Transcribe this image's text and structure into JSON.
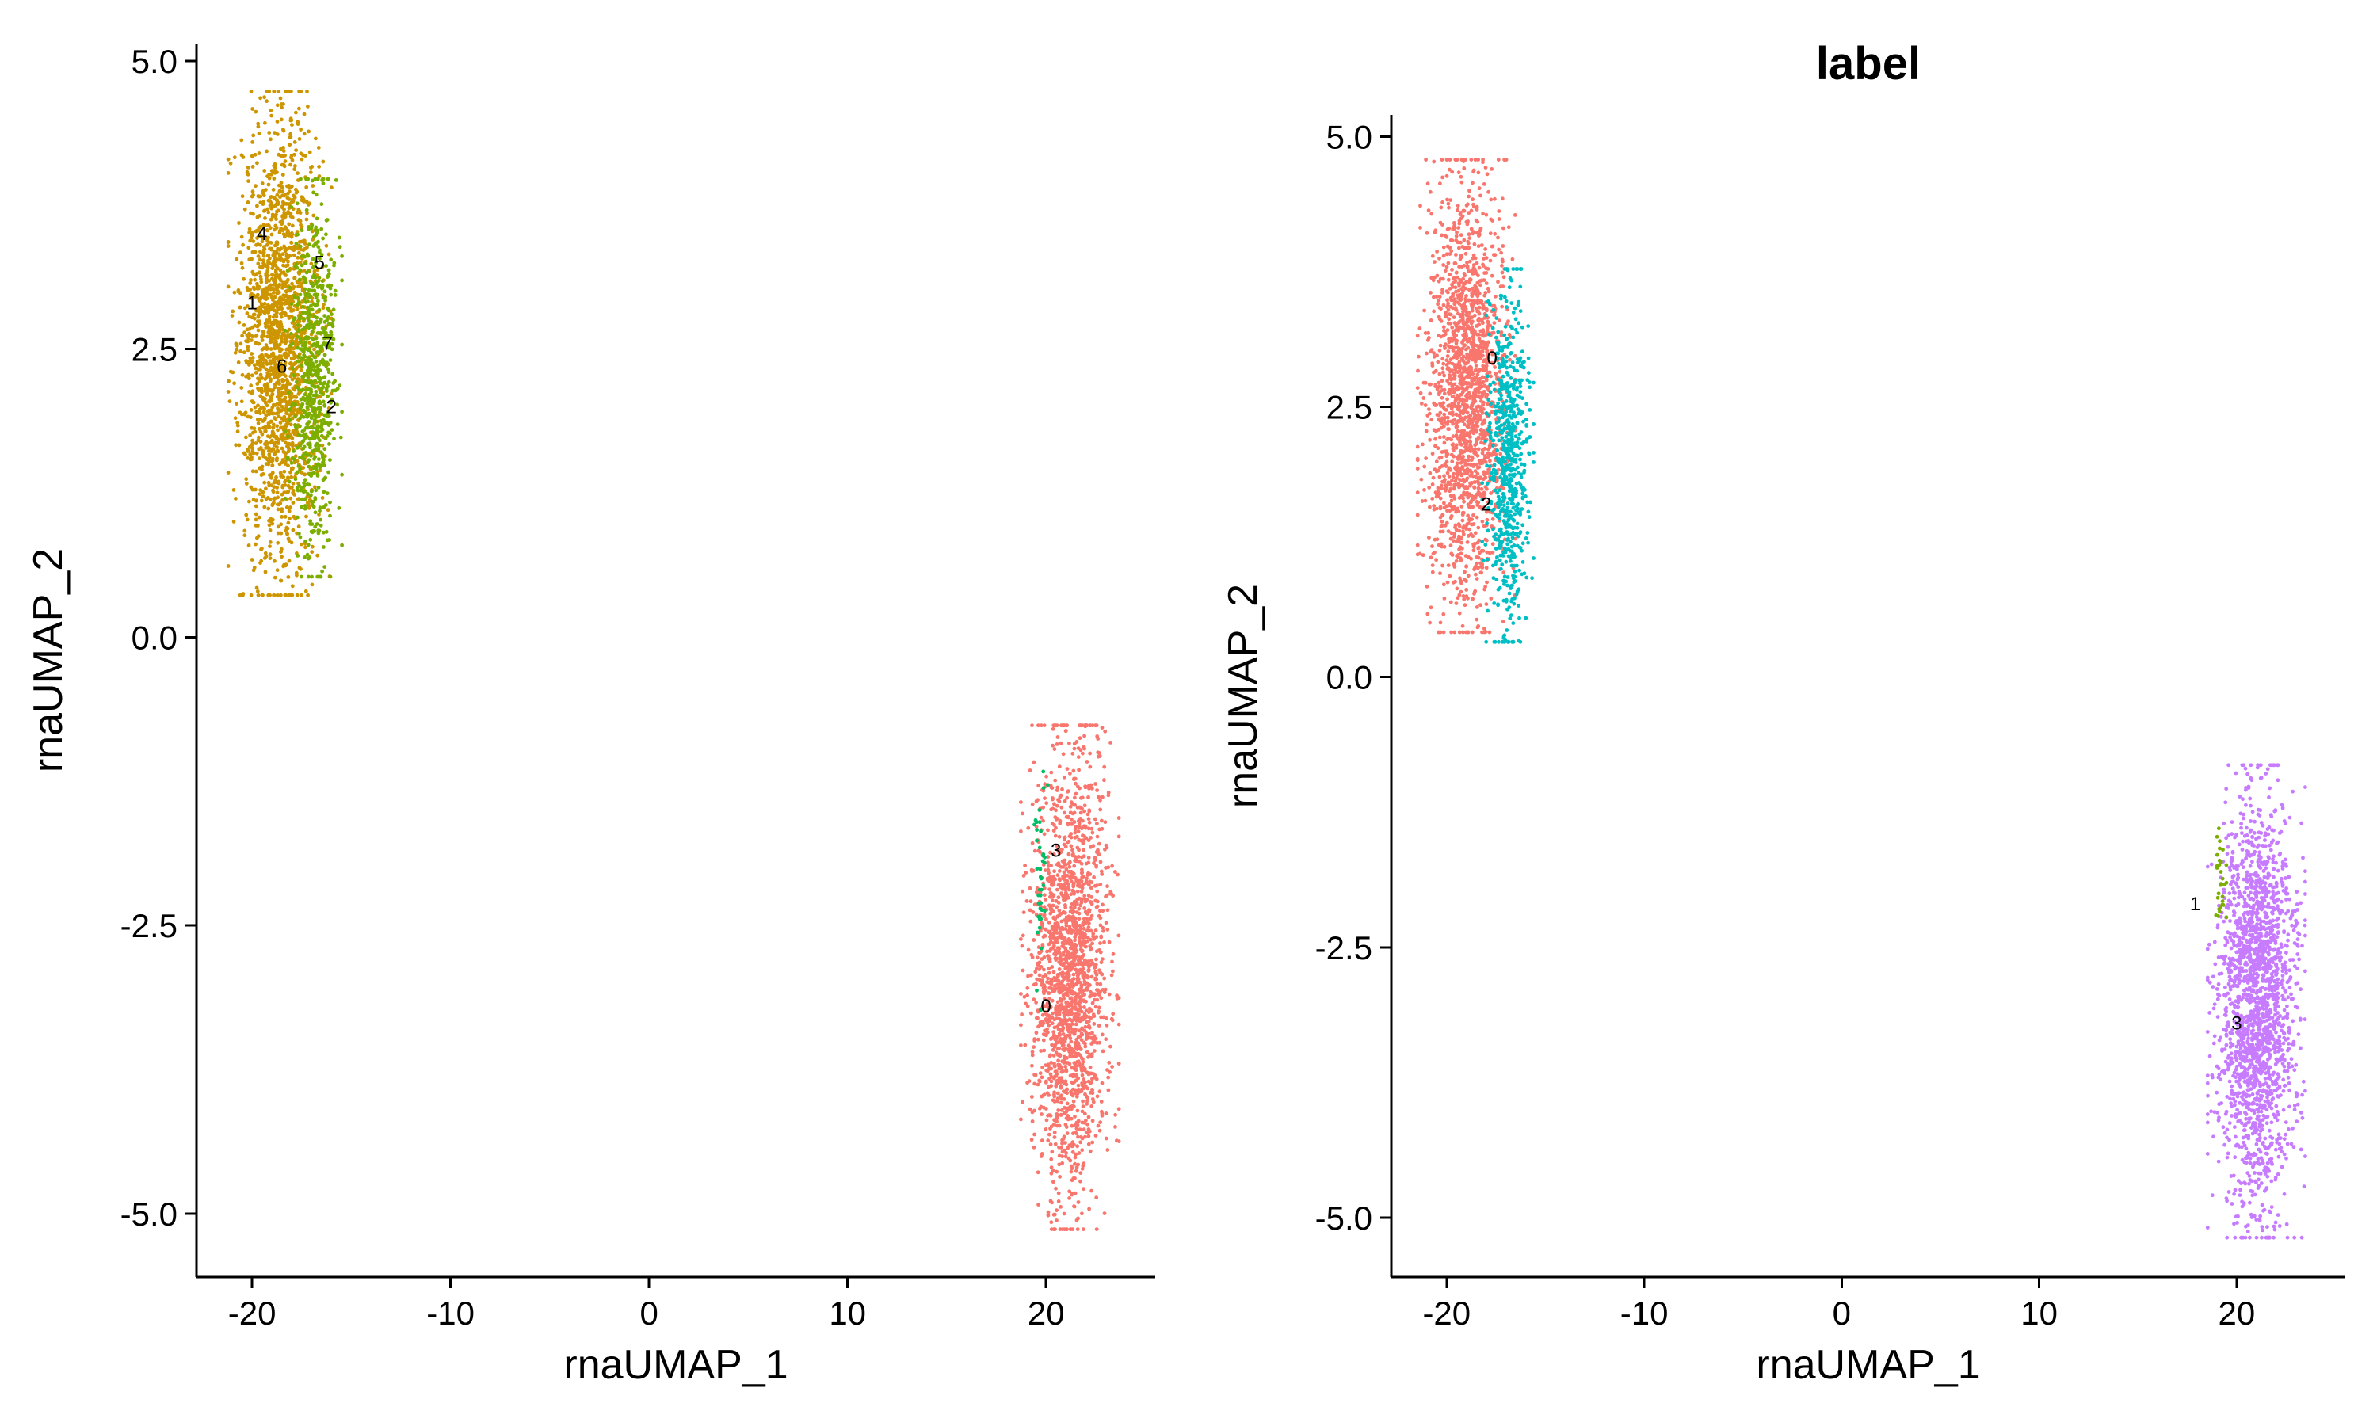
{
  "chart_data": [
    {
      "type": "scatter",
      "title": "",
      "xlabel": "rnaUMAP_1",
      "ylabel": "rnaUMAP_2",
      "xlim": [
        -22.8,
        25.5
      ],
      "ylim": [
        -5.55,
        5.15
      ],
      "xticks": [
        -20,
        -10,
        0,
        10,
        20
      ],
      "xtick_labels": [
        "-20",
        "-10",
        "0",
        "10",
        "20"
      ],
      "yticks": [
        -5.0,
        -2.5,
        0.0,
        2.5,
        5.0
      ],
      "ytick_labels": [
        "-5.0",
        "-2.5",
        "0.0",
        "2.5",
        "5.0"
      ],
      "grid": false,
      "legend": "none",
      "cluster_colors": {
        "0": "#F8766D",
        "1": "#CD9600",
        "2": "#7CAE00",
        "3": "#00BE67",
        "4": "#CD9600",
        "5": "#7CAE00",
        "6": "#CD9600",
        "7": "#7CAE00"
      },
      "point_clouds": [
        {
          "cluster": "1",
          "color": "#CD9600",
          "center": [
            -18.6,
            2.55
          ],
          "sd": [
            1.0,
            0.95
          ],
          "n": 1900
        },
        {
          "cluster": "2",
          "color": "#7CAE00",
          "center": [
            -16.9,
            2.25
          ],
          "sd": [
            0.55,
            0.75
          ],
          "n": 700
        },
        {
          "cluster": "0",
          "color": "#F8766D",
          "center": [
            21.2,
            -2.95
          ],
          "sd": [
            0.95,
            0.95
          ],
          "n": 1900
        },
        {
          "cluster": "3",
          "color": "#00BE67",
          "center": [
            19.7,
            -2.2
          ],
          "sd": [
            0.15,
            0.45
          ],
          "n": 40
        }
      ],
      "labels": [
        {
          "text": "4",
          "x": -19.5,
          "y": 3.5
        },
        {
          "text": "5",
          "x": -16.6,
          "y": 3.25
        },
        {
          "text": "1",
          "x": -20.0,
          "y": 2.9
        },
        {
          "text": "7",
          "x": -16.2,
          "y": 2.55
        },
        {
          "text": "6",
          "x": -18.5,
          "y": 2.35
        },
        {
          "text": "2",
          "x": -16.0,
          "y": 2.0
        },
        {
          "text": "3",
          "x": 20.5,
          "y": -1.85
        },
        {
          "text": "0",
          "x": 20.0,
          "y": -3.2
        }
      ]
    },
    {
      "type": "scatter",
      "title": "label",
      "xlabel": "rnaUMAP_1",
      "ylabel": "rnaUMAP_2",
      "xlim": [
        -22.8,
        25.5
      ],
      "ylim": [
        -5.55,
        5.2
      ],
      "xticks": [
        -20,
        -10,
        0,
        10,
        20
      ],
      "xtick_labels": [
        "-20",
        "-10",
        "0",
        "10",
        "20"
      ],
      "yticks": [
        -5.0,
        -2.5,
        0.0,
        2.5,
        5.0
      ],
      "ytick_labels": [
        "-5.0",
        "-2.5",
        "0.0",
        "2.5",
        "5.0"
      ],
      "grid": false,
      "legend": "none",
      "cluster_colors": {
        "0": "#F8766D",
        "1": "#7CAE00",
        "2": "#00BFC4",
        "3": "#C77CFF"
      },
      "point_clouds": [
        {
          "cluster": "0",
          "color": "#F8766D",
          "center": [
            -19.0,
            2.6
          ],
          "sd": [
            0.95,
            0.95
          ],
          "n": 1800
        },
        {
          "cluster": "2",
          "color": "#00BFC4",
          "center": [
            -16.9,
            2.05
          ],
          "sd": [
            0.5,
            0.75
          ],
          "n": 700
        },
        {
          "cluster": "3",
          "color": "#C77CFF",
          "center": [
            21.0,
            -3.0
          ],
          "sd": [
            0.95,
            0.95
          ],
          "n": 2000
        },
        {
          "cluster": "1",
          "color": "#7CAE00",
          "center": [
            19.2,
            -1.95
          ],
          "sd": [
            0.12,
            0.25
          ],
          "n": 30
        }
      ],
      "labels": [
        {
          "text": "0",
          "x": -17.7,
          "y": 2.95
        },
        {
          "text": "2",
          "x": -18.0,
          "y": 1.6
        },
        {
          "text": "1",
          "x": 17.9,
          "y": -2.1
        },
        {
          "text": "3",
          "x": 20.0,
          "y": -3.2
        }
      ]
    }
  ]
}
